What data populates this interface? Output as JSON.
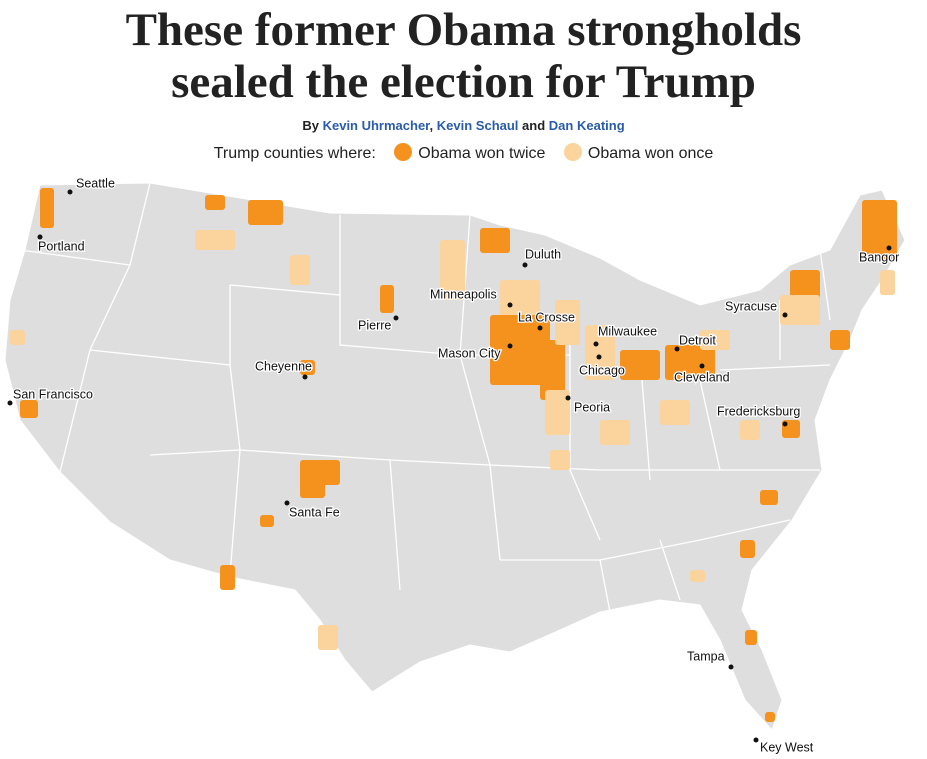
{
  "header": {
    "title_lines": [
      "These former Obama strongholds",
      "sealed the election for Trump"
    ],
    "byline": {
      "by": "By",
      "authors": [
        "Kevin Uhrmacher",
        "Kevin Schaul",
        "Dan Keating"
      ],
      "separators": [
        ",",
        "and"
      ]
    }
  },
  "legend": {
    "label": "Trump counties where:",
    "items": [
      {
        "label": "Obama won twice",
        "color": "#f5921e"
      },
      {
        "label": "Obama won once",
        "color": "#fbd39c"
      }
    ]
  },
  "cities": [
    "Seattle",
    "Portland",
    "San Francisco",
    "Cheyenne",
    "Pierre",
    "Minneapolis",
    "Duluth",
    "La Crosse",
    "Mason City",
    "Milwaukee",
    "Chicago",
    "Detroit",
    "Cleveland",
    "Peoria",
    "Syracuse",
    "Bangor",
    "Fredericksburg",
    "Santa Fe",
    "Tampa",
    "Key West"
  ]
}
